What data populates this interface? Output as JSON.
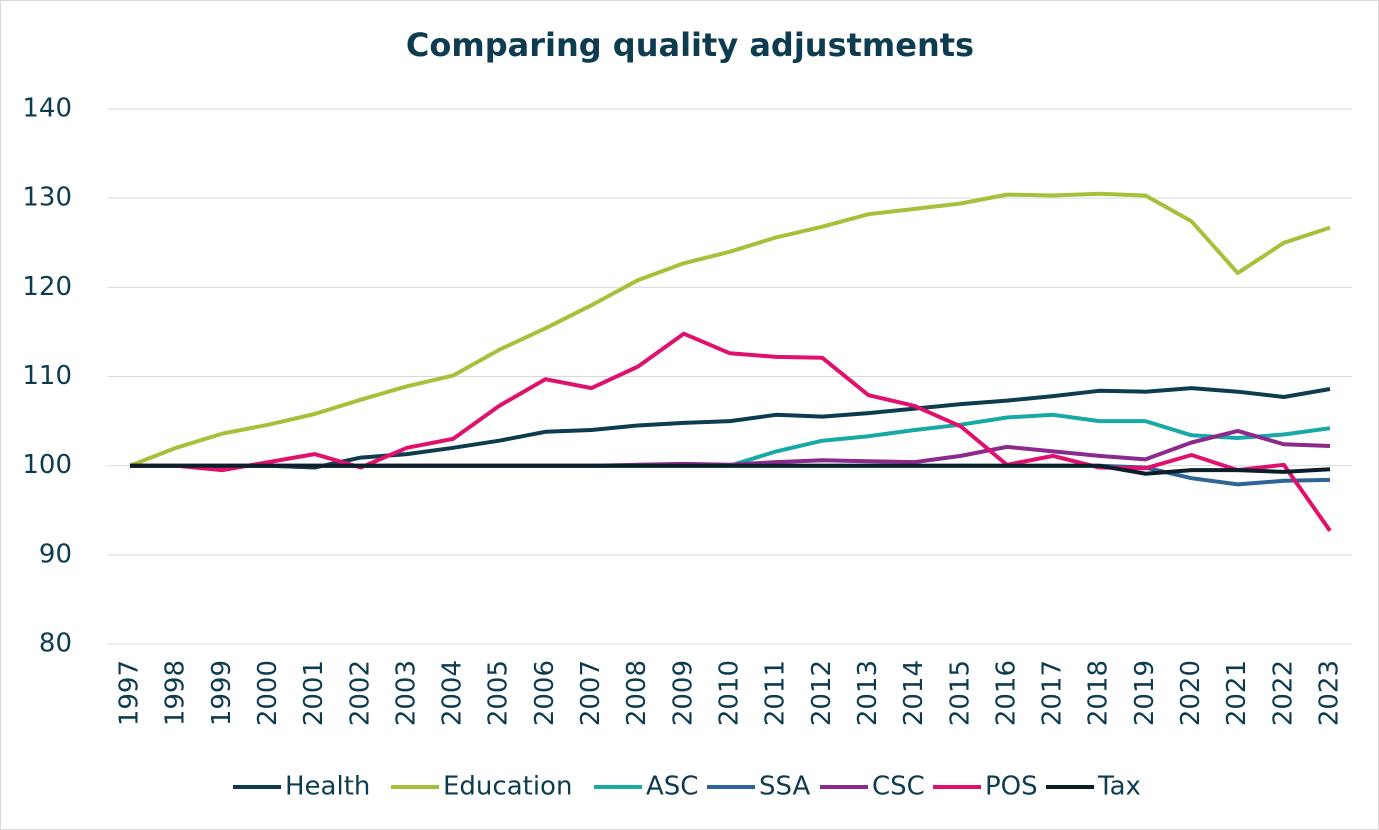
{
  "chart_data": {
    "type": "line",
    "title": "Comparing quality adjustments",
    "categories": [
      "1997",
      "1998",
      "1999",
      "2000",
      "2001",
      "2002",
      "2003",
      "2004",
      "2005",
      "2006",
      "2007",
      "2008",
      "2009",
      "2010",
      "2011",
      "2012",
      "2013",
      "2014",
      "2015",
      "2016",
      "2017",
      "2018",
      "2019",
      "2020",
      "2021",
      "2022",
      "2023"
    ],
    "ylim": [
      80,
      140
    ],
    "yticks": [
      80,
      90,
      100,
      110,
      120,
      130,
      140
    ],
    "grid": true,
    "legend": "bottom",
    "series": [
      {
        "name": "Health",
        "color": "#0d3b4f",
        "values": [
          100,
          100,
          100,
          100,
          99.8,
          100.9,
          101.3,
          102,
          102.8,
          103.8,
          104,
          104.5,
          104.8,
          105,
          105.7,
          105.5,
          105.9,
          106.4,
          106.9,
          107.3,
          107.8,
          108.4,
          108.3,
          108.7,
          108.3,
          107.7,
          108.6
        ]
      },
      {
        "name": "Education",
        "color": "#a5c13a",
        "values": [
          100,
          102,
          103.6,
          104.6,
          105.8,
          107.4,
          108.9,
          110.1,
          113,
          115.4,
          118,
          120.8,
          122.7,
          124,
          125.6,
          126.8,
          128.2,
          128.8,
          129.4,
          130.4,
          130.3,
          130.5,
          130.3,
          127.4,
          121.6,
          125,
          126.7
        ]
      },
      {
        "name": "ASC",
        "color": "#17a9a5",
        "values": [
          100,
          100,
          100,
          100,
          100,
          100,
          100,
          100,
          100,
          100,
          100,
          100,
          100,
          100,
          101.6,
          102.8,
          103.3,
          104,
          104.6,
          105.4,
          105.7,
          105,
          105,
          103.4,
          103.1,
          103.5,
          104.2
        ]
      },
      {
        "name": "SSA",
        "color": "#2e6496",
        "values": [
          100,
          100,
          100,
          100,
          100,
          100,
          100,
          100,
          100,
          100,
          100,
          100,
          100,
          100,
          100,
          100,
          100,
          100,
          100,
          100,
          100,
          100,
          99.8,
          98.6,
          97.9,
          98.3,
          98.4
        ]
      },
      {
        "name": "CSC",
        "color": "#8b2a8c",
        "values": [
          100,
          100,
          100,
          100,
          100,
          100,
          100,
          100,
          100,
          100,
          100,
          100.1,
          100.2,
          100.1,
          100.4,
          100.6,
          100.5,
          100.4,
          101.1,
          102.1,
          101.6,
          101.1,
          100.7,
          102.6,
          103.9,
          102.4,
          102.2
        ]
      },
      {
        "name": "POS",
        "color": "#e0106f",
        "values": [
          100,
          100,
          99.5,
          100.4,
          101.3,
          99.8,
          102,
          103,
          106.7,
          109.7,
          108.7,
          111.1,
          114.8,
          112.6,
          112.2,
          112.1,
          107.9,
          106.7,
          104.4,
          100.1,
          101.1,
          99.8,
          99.7,
          101.2,
          99.5,
          100.1,
          92.7
        ]
      },
      {
        "name": "Tax",
        "color": "#0b1f2a",
        "values": [
          100,
          100,
          100,
          100,
          100,
          100,
          100,
          100,
          100,
          100,
          100,
          100,
          100,
          100,
          100,
          100,
          100,
          100,
          100,
          100,
          100,
          100,
          99.1,
          99.5,
          99.5,
          99.3,
          99.6
        ]
      }
    ]
  }
}
